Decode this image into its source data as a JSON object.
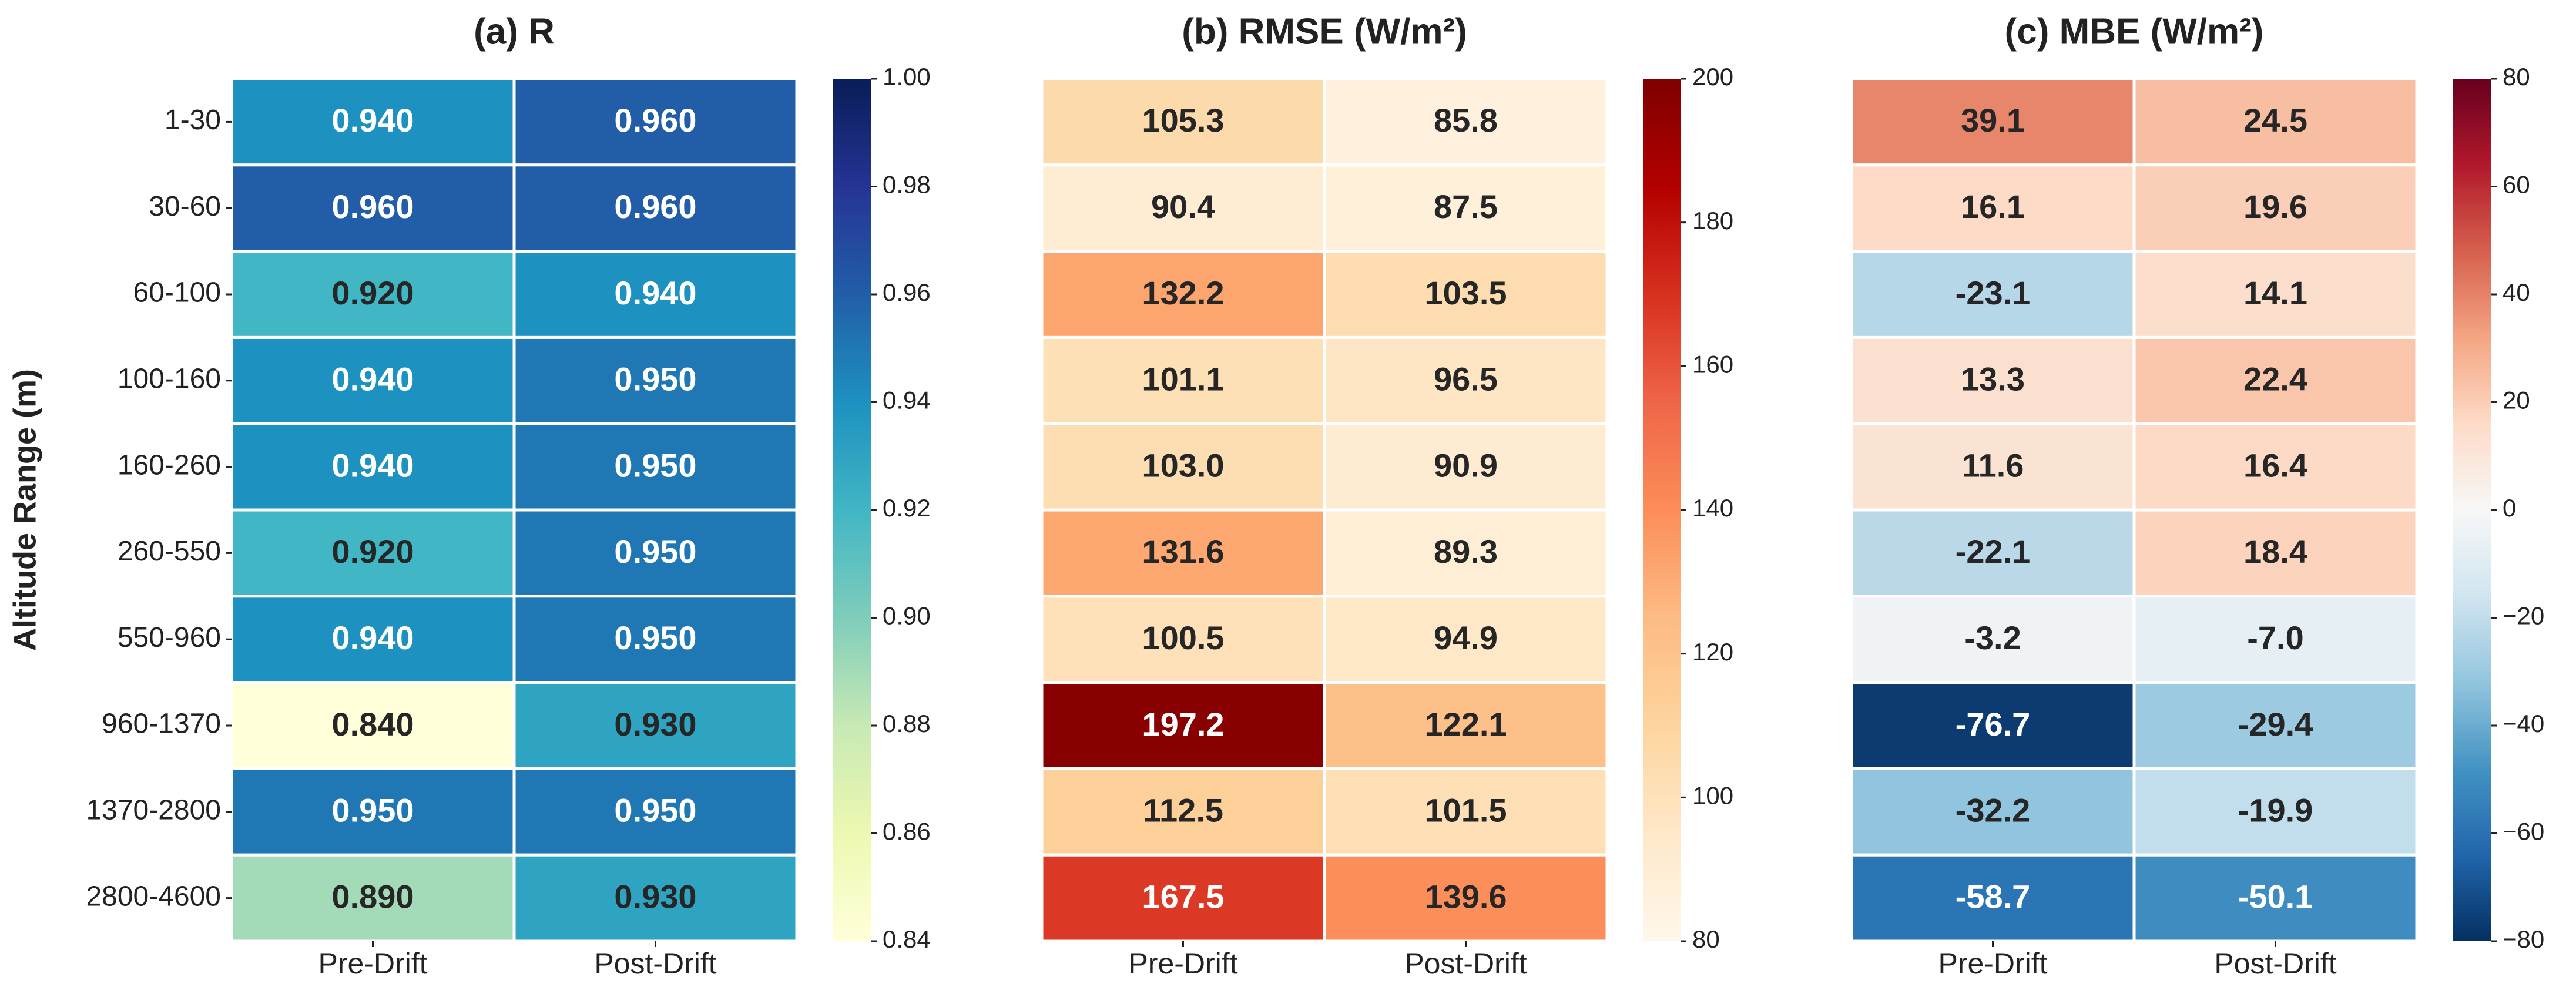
{
  "chart_data": [
    {
      "type": "heatmap",
      "title": "(a) R",
      "y_label": "Altitude Range (m)",
      "y_categories": [
        "1-30",
        "30-60",
        "60-100",
        "100-160",
        "160-260",
        "260-550",
        "550-960",
        "960-1370",
        "1370-2800",
        "2800-4600"
      ],
      "x_categories": [
        "Pre-Drift",
        "Post-Drift"
      ],
      "values": [
        [
          0.94,
          0.96
        ],
        [
          0.96,
          0.96
        ],
        [
          0.92,
          0.94
        ],
        [
          0.94,
          0.95
        ],
        [
          0.94,
          0.95
        ],
        [
          0.92,
          0.95
        ],
        [
          0.94,
          0.95
        ],
        [
          0.84,
          0.93
        ],
        [
          0.95,
          0.95
        ],
        [
          0.89,
          0.93
        ]
      ],
      "value_labels": [
        [
          "0.940",
          "0.960"
        ],
        [
          "0.960",
          "0.960"
        ],
        [
          "0.920",
          "0.940"
        ],
        [
          "0.940",
          "0.950"
        ],
        [
          "0.940",
          "0.950"
        ],
        [
          "0.920",
          "0.950"
        ],
        [
          "0.940",
          "0.950"
        ],
        [
          "0.840",
          "0.930"
        ],
        [
          "0.950",
          "0.950"
        ],
        [
          "0.890",
          "0.930"
        ]
      ],
      "clim": [
        0.84,
        1.0
      ],
      "cticks": [
        0.84,
        0.86,
        0.88,
        {
          "value": 0.9,
          "label": "0.90"
        },
        0.92,
        0.94,
        0.96,
        0.98,
        {
          "value": 1.0,
          "label": "1.00"
        }
      ],
      "colormap": [
        "#ffffd9",
        "#edf8b1",
        "#c7e9b4",
        "#7fcdbb",
        "#41b6c4",
        "#1d91c0",
        "#225ea8",
        "#253494",
        "#081d58"
      ]
    },
    {
      "type": "heatmap",
      "title": "(b) RMSE (W/m²)",
      "x_categories": [
        "Pre-Drift",
        "Post-Drift"
      ],
      "values": [
        [
          105.3,
          85.8
        ],
        [
          90.4,
          87.5
        ],
        [
          132.2,
          103.5
        ],
        [
          101.1,
          96.5
        ],
        [
          103.0,
          90.9
        ],
        [
          131.6,
          89.3
        ],
        [
          100.5,
          94.9
        ],
        [
          197.2,
          122.1
        ],
        [
          112.5,
          101.5
        ],
        [
          167.5,
          139.6
        ]
      ],
      "value_labels": [
        [
          "105.3",
          "85.8"
        ],
        [
          "90.4",
          "87.5"
        ],
        [
          "132.2",
          "103.5"
        ],
        [
          "101.1",
          "96.5"
        ],
        [
          "103.0",
          "90.9"
        ],
        [
          "131.6",
          "89.3"
        ],
        [
          "100.5",
          "94.9"
        ],
        [
          "197.2",
          "122.1"
        ],
        [
          "112.5",
          "101.5"
        ],
        [
          "167.5",
          "139.6"
        ]
      ],
      "clim": [
        80,
        200
      ],
      "cticks": [
        80,
        100,
        120,
        140,
        160,
        180,
        200
      ],
      "colormap": [
        "#fff7ec",
        "#fee8c8",
        "#fdd49e",
        "#fdbb84",
        "#fc8d59",
        "#ef6548",
        "#d7301f",
        "#b30000",
        "#7f0000"
      ]
    },
    {
      "type": "heatmap",
      "title": "(c) MBE (W/m²)",
      "x_categories": [
        "Pre-Drift",
        "Post-Drift"
      ],
      "values": [
        [
          39.1,
          24.5
        ],
        [
          16.1,
          19.6
        ],
        [
          -23.1,
          14.1
        ],
        [
          13.3,
          22.4
        ],
        [
          11.6,
          16.4
        ],
        [
          -22.1,
          18.4
        ],
        [
          -3.2,
          -7.0
        ],
        [
          -76.7,
          -29.4
        ],
        [
          -32.2,
          -19.9
        ],
        [
          -58.7,
          -50.1
        ]
      ],
      "value_labels": [
        [
          "39.1",
          "24.5"
        ],
        [
          "16.1",
          "19.6"
        ],
        [
          "-23.1",
          "14.1"
        ],
        [
          "13.3",
          "22.4"
        ],
        [
          "11.6",
          "16.4"
        ],
        [
          "-22.1",
          "18.4"
        ],
        [
          "-3.2",
          "-7.0"
        ],
        [
          "-76.7",
          "-29.4"
        ],
        [
          "-32.2",
          "-19.9"
        ],
        [
          "-58.7",
          "-50.1"
        ]
      ],
      "clim": [
        -80,
        80
      ],
      "cticks": [
        {
          "value": -80,
          "label": "−80"
        },
        {
          "value": -60,
          "label": "−60"
        },
        {
          "value": -40,
          "label": "−40"
        },
        {
          "value": -20,
          "label": "−20"
        },
        0,
        20,
        40,
        60,
        80
      ],
      "colormap": [
        "#053061",
        "#2166ac",
        "#4393c3",
        "#92c5de",
        "#d1e5f0",
        "#f7f7f7",
        "#fddbc7",
        "#f4a582",
        "#d6604d",
        "#b2182b",
        "#67001f"
      ]
    }
  ]
}
